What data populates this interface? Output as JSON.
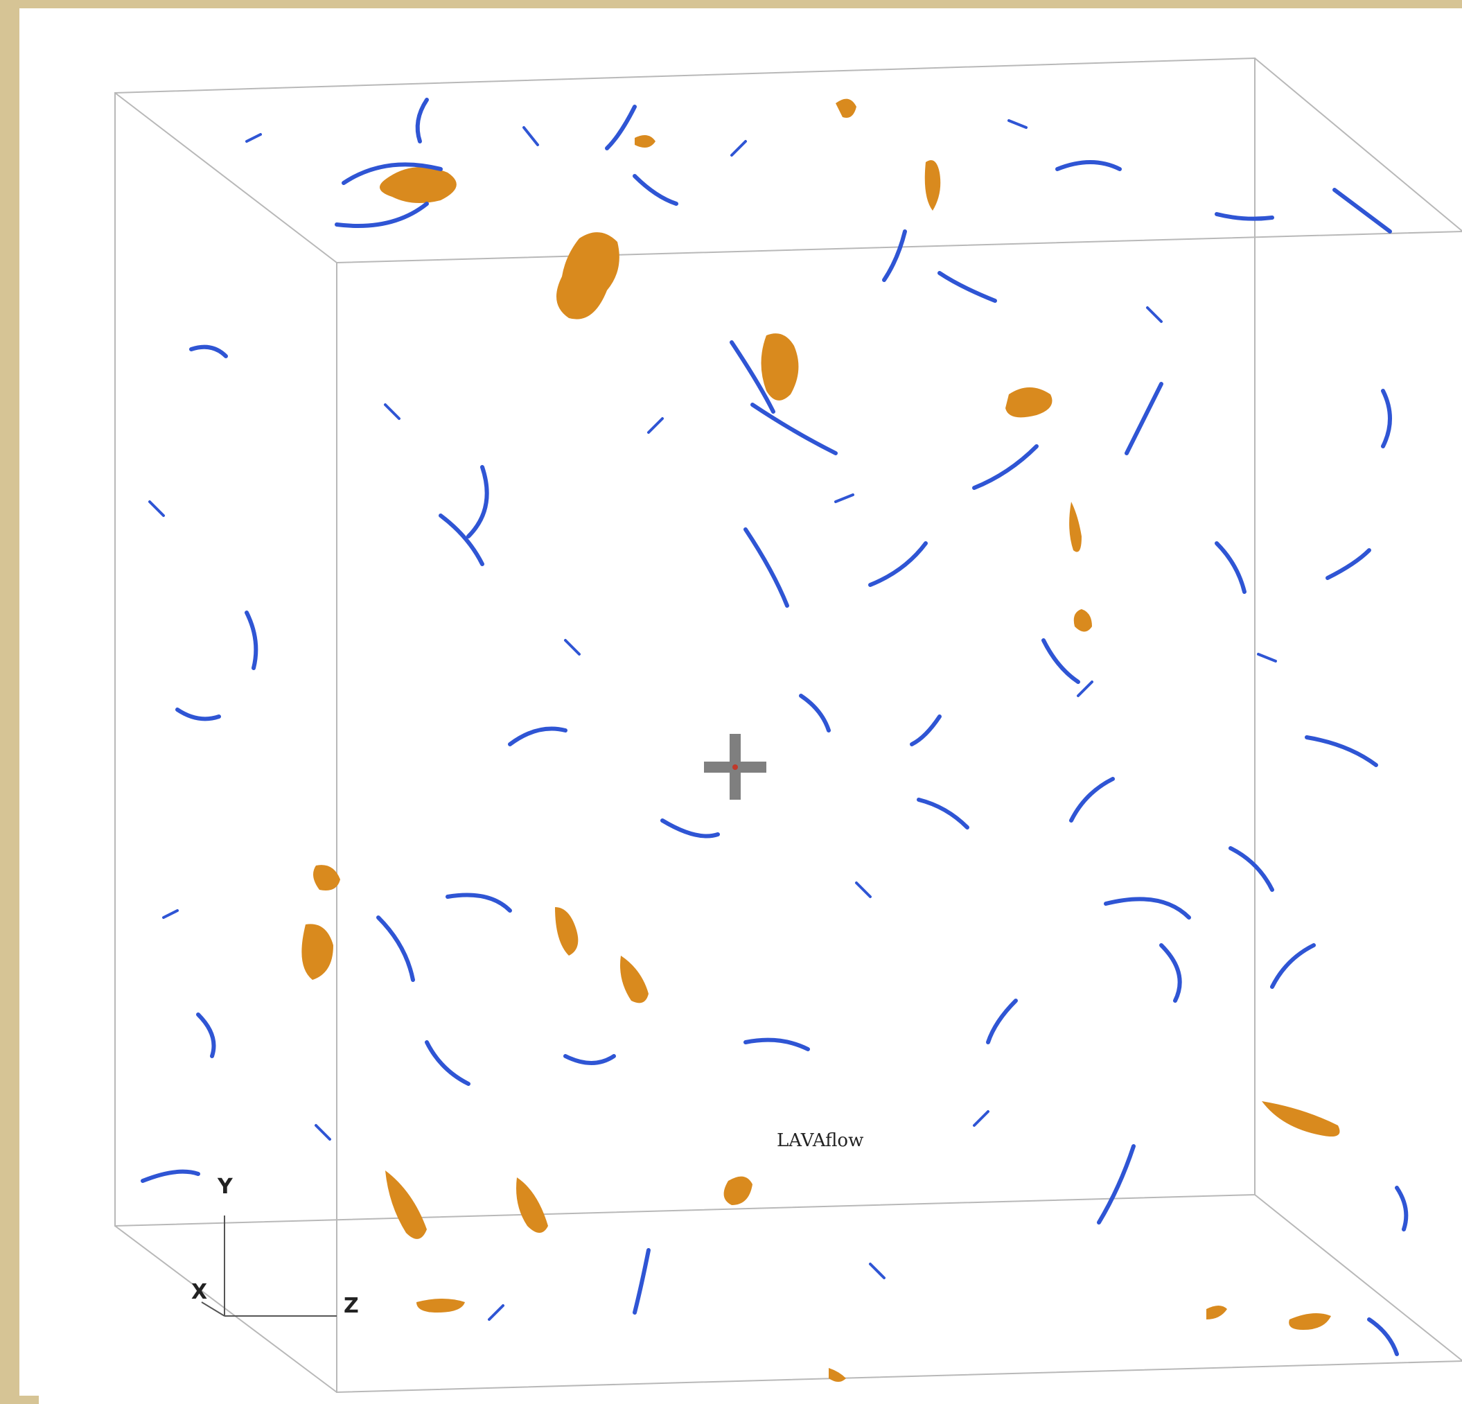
{
  "scene": {
    "watermark": "LAVAflow",
    "axes": {
      "y_label": "Y",
      "x_label": "X",
      "z_label": "Z"
    },
    "colors": {
      "background": "#ffffff",
      "border": "#d6c495",
      "box_edge": "#b8b8b8",
      "vortex_blue": "#2f55d4",
      "vortex_orange": "#d98a1e",
      "crosshair": "#7f7f7f"
    },
    "icons": {
      "center_marker": "crosshair-icon"
    }
  }
}
